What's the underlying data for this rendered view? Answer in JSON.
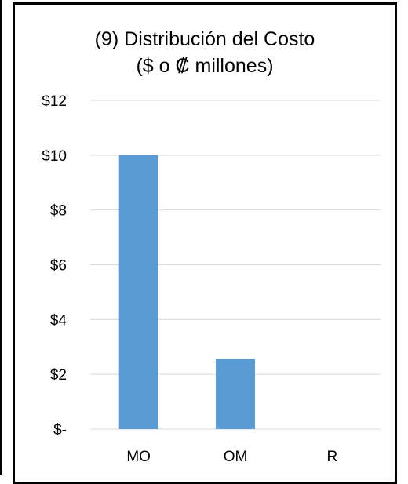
{
  "chart_data": {
    "type": "bar",
    "title": "(9) Distribución del Costo",
    "subtitle": "($ o ₡ millones)",
    "categories": [
      "MO",
      "OM",
      "R"
    ],
    "values": [
      10,
      2.55,
      0
    ],
    "ylim": [
      0,
      12
    ],
    "yticks": [
      0,
      2,
      4,
      6,
      8,
      10,
      12
    ],
    "ytick_labels": [
      "$-",
      "$2",
      "$4",
      "$6",
      "$8",
      "$10",
      "$12"
    ],
    "grid": true,
    "bar_color": "#5b9bd5",
    "grid_color": "#d9d9d9"
  }
}
